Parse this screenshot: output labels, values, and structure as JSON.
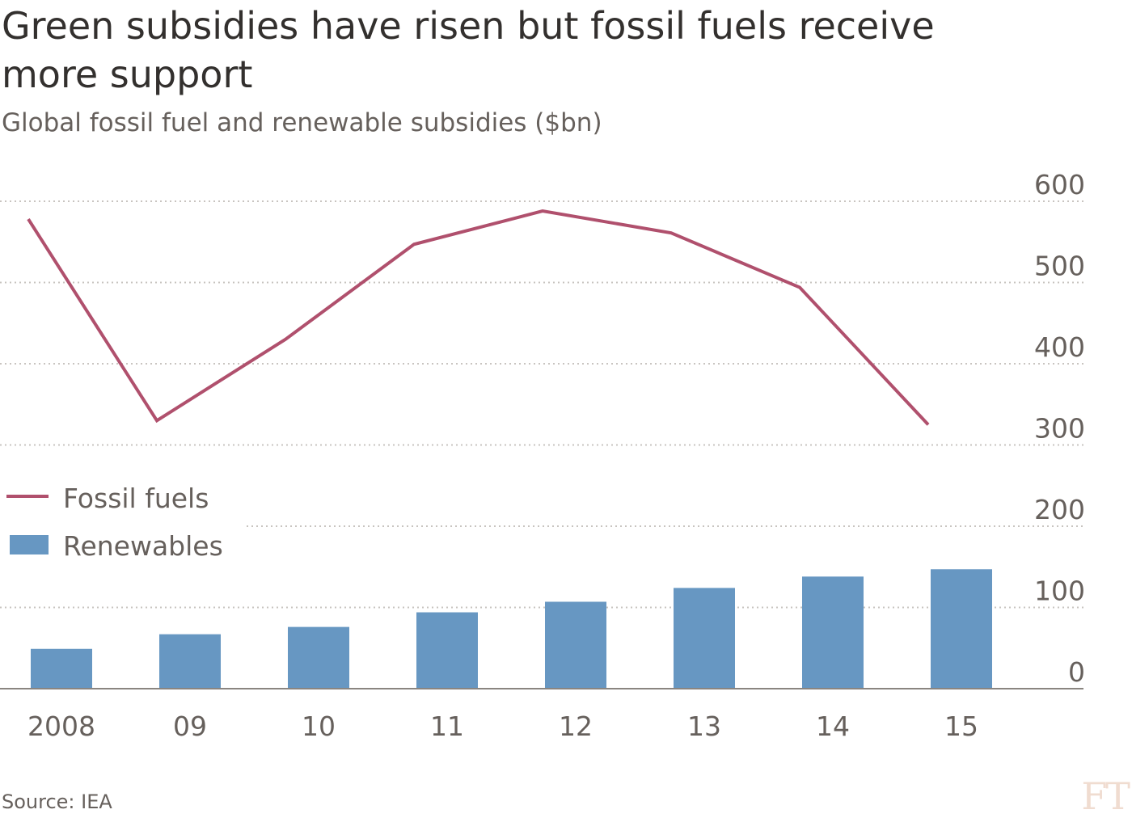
{
  "title": "Green subsidies have risen but fossil fuels receive more support",
  "subtitle": "Global fossil fuel and renewable subsidies ($bn)",
  "source": "Source: IEA",
  "logo": "FT",
  "colors": {
    "fossil": "#b0506d",
    "renewables": "#6797c2",
    "grid": "#c8c4c0",
    "text": "#66605c"
  },
  "chart_data": {
    "type": "bar+line",
    "categories": [
      "2008",
      "09",
      "10",
      "11",
      "12",
      "13",
      "14",
      "15"
    ],
    "series": [
      {
        "name": "Fossil fuels",
        "type": "line",
        "values": [
          578,
          330,
          430,
          547,
          588,
          561,
          494,
          325
        ]
      },
      {
        "name": "Renewables",
        "type": "bar",
        "values": [
          49,
          67,
          76,
          94,
          107,
          124,
          138,
          147
        ]
      }
    ],
    "ylim": [
      0,
      600
    ],
    "yticks": [
      "0",
      "100",
      "200",
      "300",
      "400",
      "500",
      "600"
    ],
    "ytick_values": [
      0,
      100,
      200,
      300,
      400,
      500,
      600
    ],
    "grid": true,
    "legend": "left-middle"
  }
}
